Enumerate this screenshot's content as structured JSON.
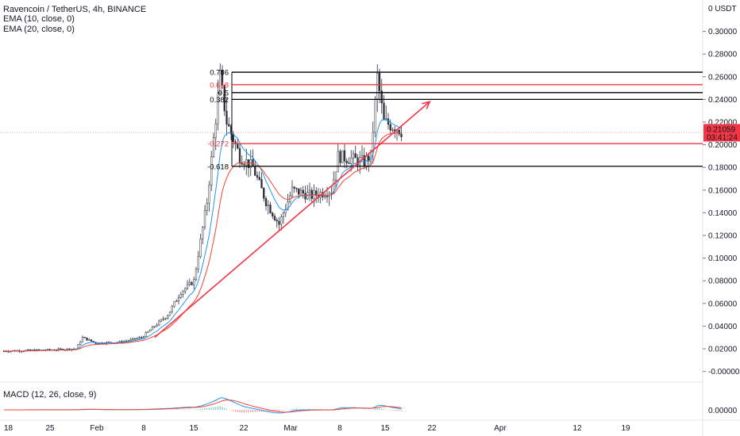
{
  "header": {
    "title": "Ravencoin / TetherUS, 4h, BINANCE",
    "indicators": [
      "EMA (10, close, 0)",
      "EMA (20, close, 0)"
    ],
    "macd_label": "MACD (12, 26, close, 9)"
  },
  "colors": {
    "up": "#26a69a",
    "down": "#ef5350",
    "candle": "#2a2e39",
    "ema10": "#2196f3",
    "ema20": "#f44336",
    "trendline": "#f23645",
    "fib_black": "#000000",
    "fib_red": "#f23645",
    "price_tag": "#f23645"
  },
  "price_axis": {
    "currency": "USDT",
    "ticks": [
      "0.30000",
      "0.28000",
      "0.26000",
      "0.24000",
      "0.22000",
      "0.20000",
      "0.18000",
      "0.16000",
      "0.14000",
      "0.12000",
      "0.10000",
      "0.08000",
      "0.06000",
      "0.04000",
      "0.02000",
      "-0.00000"
    ],
    "macd_tick": "0.00000",
    "last_price": "0.21059",
    "countdown": "03:41:24"
  },
  "time_axis": {
    "labels": [
      "18",
      "25",
      "Feb",
      "8",
      "15",
      "22",
      "Mar",
      "8",
      "15",
      "22",
      "Apr",
      "12",
      "19"
    ]
  },
  "fib_levels": [
    {
      "label": "0.786",
      "price": 0.264,
      "color": "black"
    },
    {
      "label": "0.618",
      "price": 0.253,
      "color": "red"
    },
    {
      "label": "0.5",
      "price": 0.246,
      "color": "black"
    },
    {
      "label": "0.382",
      "price": 0.24,
      "color": "black"
    },
    {
      "label": "-0.272",
      "price": 0.201,
      "color": "red"
    },
    {
      "label": "-0.618",
      "price": 0.181,
      "color": "black"
    }
  ],
  "chart_data": {
    "type": "candlestick",
    "title": "Ravencoin / TetherUS, 4h, BINANCE",
    "y_range": [
      -0.005,
      0.31
    ],
    "x_labels": [
      "18",
      "25",
      "Feb",
      "8",
      "15",
      "22",
      "Mar",
      "8",
      "15",
      "22",
      "Apr",
      "12",
      "19"
    ],
    "price_path": [
      [
        "Jan 18",
        0.018
      ],
      [
        "Jan 25",
        0.019
      ],
      [
        "Jan 29",
        0.02
      ],
      [
        "Jan 30",
        0.03
      ],
      [
        "Feb 1",
        0.025
      ],
      [
        "Feb 5",
        0.026
      ],
      [
        "Feb 8",
        0.03
      ],
      [
        "Feb 10",
        0.04
      ],
      [
        "Feb 12",
        0.05
      ],
      [
        "Feb 14",
        0.07
      ],
      [
        "Feb 16",
        0.08
      ],
      [
        "Feb 18",
        0.15
      ],
      [
        "Feb 20",
        0.26
      ],
      [
        "Feb 21",
        0.22
      ],
      [
        "Feb 23",
        0.19
      ],
      [
        "Feb 25",
        0.18
      ],
      [
        "Feb 27",
        0.15
      ],
      [
        "Mar 1",
        0.13
      ],
      [
        "Mar 3",
        0.16
      ],
      [
        "Mar 6",
        0.155
      ],
      [
        "Mar 9",
        0.16
      ],
      [
        "Mar 10",
        0.19
      ],
      [
        "Mar 14",
        0.185
      ],
      [
        "Mar 15",
        0.19
      ],
      [
        "Mar 16",
        0.26
      ],
      [
        "Mar 17",
        0.22
      ],
      [
        "Mar 19",
        0.215
      ],
      [
        "Mar 20",
        0.2106
      ]
    ],
    "ema": [
      {
        "name": "EMA (10, close, 0)",
        "color": "#2196f3"
      },
      {
        "name": "EMA (20, close, 0)",
        "color": "#f44336"
      }
    ],
    "trendline": {
      "from": [
        "Feb 10",
        0.03
      ],
      "to": [
        "Mar 24",
        0.238
      ]
    },
    "fib_levels": [
      {
        "label": "0.786",
        "value": 0.264
      },
      {
        "label": "0.618",
        "value": 0.253
      },
      {
        "label": "0.5",
        "value": 0.246
      },
      {
        "label": "0.382",
        "value": 0.24
      },
      {
        "label": "-0.272",
        "value": 0.201
      },
      {
        "label": "-0.618",
        "value": 0.181
      }
    ],
    "last_price": 0.21059
  }
}
